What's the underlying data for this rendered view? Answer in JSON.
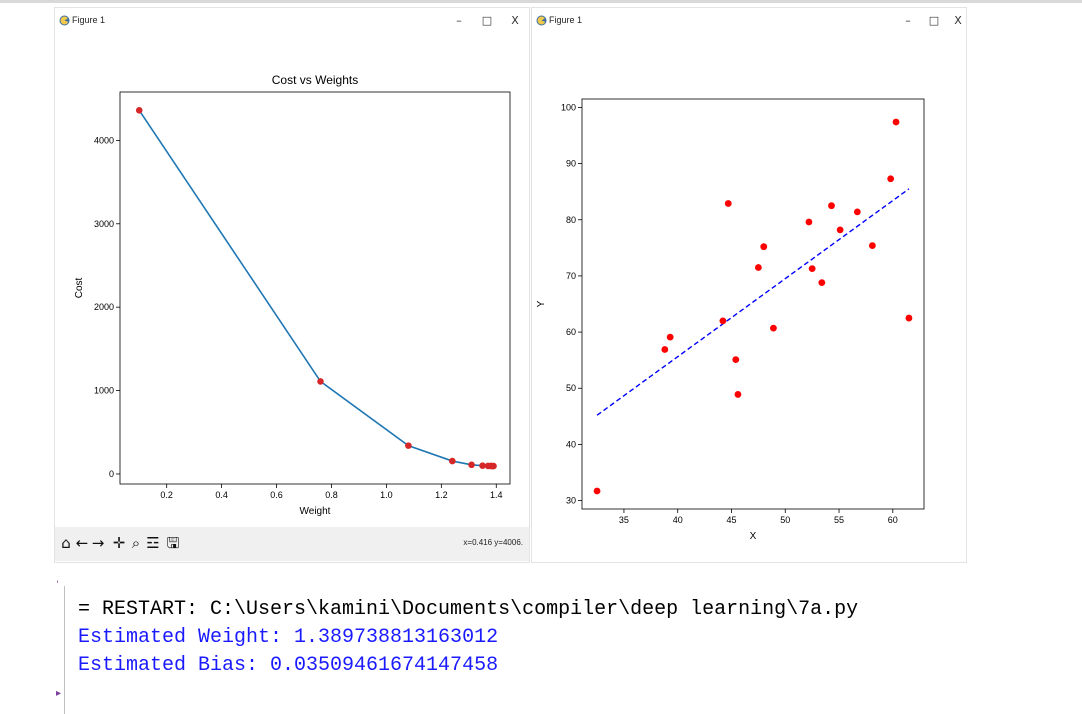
{
  "window_left": {
    "title": "Figure 1",
    "minimize": "–",
    "maximize": "□",
    "close": "X",
    "coords_readout": "x=0.416 y=4006.",
    "toolbar_icons": [
      "home-icon",
      "back-arrow-icon",
      "forward-arrow-icon",
      "pan-icon",
      "zoom-icon",
      "configure-subplots-icon",
      "save-icon"
    ]
  },
  "window_right": {
    "title": "Figure 1",
    "minimize": "–",
    "maximize": "□",
    "close": "X"
  },
  "chart_data": [
    {
      "type": "line",
      "title": "Cost vs Weights",
      "xlabel": "Weight",
      "ylabel": "Cost",
      "xlim": [
        0.03,
        1.45
      ],
      "ylim": [
        -120,
        4580
      ],
      "xticks": [
        0.2,
        0.4,
        0.6,
        0.8,
        1.0,
        1.2,
        1.4
      ],
      "xtick_labels": [
        "0.2",
        "0.4",
        "0.6",
        "0.8",
        "1.0",
        "1.2",
        "1.4"
      ],
      "yticks": [
        0,
        1000,
        2000,
        3000,
        4000
      ],
      "ytick_labels": [
        "0",
        "1000",
        "2000",
        "3000",
        "4000"
      ],
      "grid": false,
      "line_color": "#1f77b4",
      "marker_color": "#d62728",
      "x": [
        0.1,
        0.76,
        1.08,
        1.24,
        1.31,
        1.35,
        1.37,
        1.38,
        1.385,
        1.39
      ],
      "y": [
        4360,
        1110,
        340,
        155,
        110,
        100,
        97,
        96,
        95,
        95
      ]
    },
    {
      "type": "scatter",
      "title": "",
      "xlabel": "X",
      "ylabel": "Y",
      "xlim": [
        31.1,
        62.9
      ],
      "ylim": [
        28.5,
        101.5
      ],
      "xticks": [
        35,
        40,
        45,
        50,
        55,
        60
      ],
      "xtick_labels": [
        "35",
        "40",
        "45",
        "50",
        "55",
        "60"
      ],
      "yticks": [
        30,
        40,
        50,
        60,
        70,
        80,
        90,
        100
      ],
      "ytick_labels": [
        "30",
        "40",
        "50",
        "60",
        "70",
        "80",
        "90",
        "100"
      ],
      "grid": false,
      "point_color": "#ff0000",
      "fit_line_color": "#0000ff",
      "x": [
        32.5,
        38.8,
        39.3,
        44.2,
        44.7,
        45.4,
        45.6,
        47.5,
        48.0,
        48.9,
        52.2,
        52.5,
        53.4,
        54.3,
        55.1,
        56.7,
        58.1,
        59.8,
        60.3,
        61.5
      ],
      "y": [
        31.7,
        56.9,
        59.1,
        62.0,
        82.9,
        55.1,
        48.9,
        71.5,
        75.2,
        60.7,
        79.6,
        71.3,
        68.8,
        82.5,
        78.2,
        81.4,
        75.4,
        87.3,
        97.4,
        62.5
      ],
      "fit_line": {
        "x": [
          32.5,
          61.5
        ],
        "y": [
          45.2,
          85.5
        ]
      }
    }
  ],
  "shell": {
    "restart_line": "= RESTART: C:\\Users\\kamini\\Documents\\compiler\\deep learning\\7a.py",
    "weight_line": "Estimated Weight: 1.389738813163012",
    "bias_line": "Estimated Bias: 0.03509461674147458",
    "prompt": "▸",
    "output_color": "#1a1aff",
    "text_color": "#000000"
  }
}
